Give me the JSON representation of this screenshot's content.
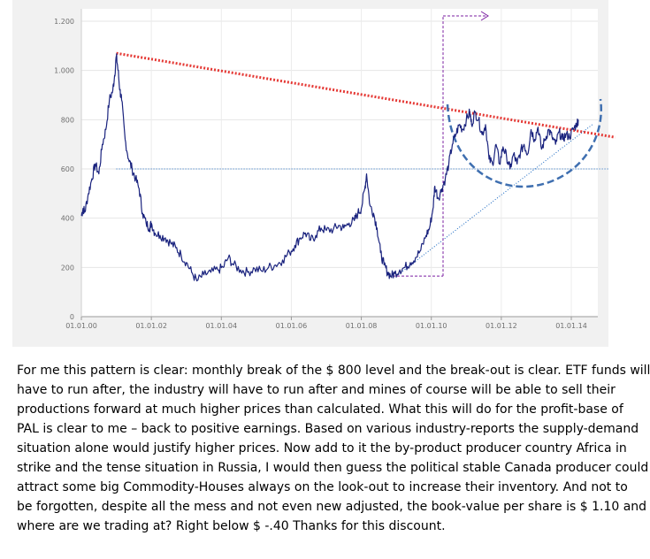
{
  "chart_data": {
    "type": "line",
    "title": "",
    "xlabel": "",
    "ylabel": "",
    "ylim": [
      0,
      1200
    ],
    "y_ticks": [
      0,
      200,
      400,
      600,
      800,
      1000,
      1200
    ],
    "y_tick_labels": [
      "0",
      "200",
      "400",
      "600",
      "800",
      "1.000",
      "1.200"
    ],
    "x_tick_labels": [
      "01.01.00",
      "01.01.02",
      "01.01.04",
      "01.01.06",
      "01.01.08",
      "01.01.10",
      "01.01.12",
      "01.01.14"
    ],
    "x_tick_years": [
      2000,
      2002,
      2004,
      2006,
      2008,
      2010,
      2012,
      2014
    ],
    "x_range_years": [
      2000.0,
      2014.6
    ],
    "grid": true,
    "series": [
      {
        "color": "#1a237e",
        "points": [
          [
            2000.0,
            410
          ],
          [
            2000.05,
            440
          ],
          [
            2000.1,
            425
          ],
          [
            2000.2,
            500
          ],
          [
            2000.3,
            560
          ],
          [
            2000.4,
            620
          ],
          [
            2000.5,
            580
          ],
          [
            2000.6,
            700
          ],
          [
            2000.7,
            760
          ],
          [
            2000.8,
            880
          ],
          [
            2000.9,
            920
          ],
          [
            2000.95,
            980
          ],
          [
            2001.0,
            1060
          ],
          [
            2001.05,
            1000
          ],
          [
            2001.1,
            920
          ],
          [
            2001.15,
            880
          ],
          [
            2001.25,
            720
          ],
          [
            2001.35,
            640
          ],
          [
            2001.45,
            600
          ],
          [
            2001.55,
            560
          ],
          [
            2001.65,
            520
          ],
          [
            2001.75,
            420
          ],
          [
            2001.85,
            380
          ],
          [
            2001.95,
            360
          ],
          [
            2002.0,
            380
          ],
          [
            2002.1,
            340
          ],
          [
            2002.25,
            330
          ],
          [
            2002.4,
            320
          ],
          [
            2002.55,
            300
          ],
          [
            2002.7,
            280
          ],
          [
            2002.85,
            250
          ],
          [
            2003.0,
            220
          ],
          [
            2003.15,
            180
          ],
          [
            2003.3,
            145
          ],
          [
            2003.5,
            170
          ],
          [
            2003.7,
            180
          ],
          [
            2003.9,
            190
          ],
          [
            2004.05,
            200
          ],
          [
            2004.2,
            240
          ],
          [
            2004.35,
            210
          ],
          [
            2004.55,
            190
          ],
          [
            2004.75,
            180
          ],
          [
            2004.95,
            195
          ],
          [
            2005.15,
            185
          ],
          [
            2005.35,
            200
          ],
          [
            2005.55,
            210
          ],
          [
            2005.75,
            230
          ],
          [
            2005.95,
            260
          ],
          [
            2006.1,
            290
          ],
          [
            2006.25,
            320
          ],
          [
            2006.4,
            340
          ],
          [
            2006.55,
            310
          ],
          [
            2006.7,
            330
          ],
          [
            2006.85,
            360
          ],
          [
            2007.0,
            350
          ],
          [
            2007.2,
            355
          ],
          [
            2007.35,
            370
          ],
          [
            2007.5,
            360
          ],
          [
            2007.65,
            380
          ],
          [
            2007.8,
            390
          ],
          [
            2007.9,
            420
          ],
          [
            2008.0,
            440
          ],
          [
            2008.1,
            520
          ],
          [
            2008.15,
            580
          ],
          [
            2008.25,
            450
          ],
          [
            2008.35,
            420
          ],
          [
            2008.45,
            360
          ],
          [
            2008.55,
            260
          ],
          [
            2008.65,
            210
          ],
          [
            2008.75,
            180
          ],
          [
            2008.85,
            165
          ],
          [
            2008.95,
            175
          ],
          [
            2009.1,
            190
          ],
          [
            2009.25,
            200
          ],
          [
            2009.4,
            220
          ],
          [
            2009.55,
            240
          ],
          [
            2009.7,
            270
          ],
          [
            2009.85,
            330
          ],
          [
            2009.95,
            360
          ],
          [
            2010.05,
            440
          ],
          [
            2010.1,
            530
          ],
          [
            2010.2,
            480
          ],
          [
            2010.3,
            520
          ],
          [
            2010.4,
            560
          ],
          [
            2010.5,
            620
          ],
          [
            2010.6,
            700
          ],
          [
            2010.7,
            740
          ],
          [
            2010.8,
            780
          ],
          [
            2010.9,
            760
          ],
          [
            2011.0,
            800
          ],
          [
            2011.1,
            830
          ],
          [
            2011.15,
            780
          ],
          [
            2011.25,
            830
          ],
          [
            2011.35,
            800
          ],
          [
            2011.45,
            740
          ],
          [
            2011.55,
            780
          ],
          [
            2011.65,
            640
          ],
          [
            2011.75,
            620
          ],
          [
            2011.85,
            700
          ],
          [
            2011.95,
            620
          ],
          [
            2012.05,
            690
          ],
          [
            2012.15,
            650
          ],
          [
            2012.25,
            600
          ],
          [
            2012.35,
            660
          ],
          [
            2012.45,
            620
          ],
          [
            2012.55,
            670
          ],
          [
            2012.65,
            700
          ],
          [
            2012.75,
            660
          ],
          [
            2012.85,
            760
          ],
          [
            2012.95,
            720
          ],
          [
            2013.05,
            770
          ],
          [
            2013.15,
            680
          ],
          [
            2013.25,
            720
          ],
          [
            2013.35,
            760
          ],
          [
            2013.45,
            730
          ],
          [
            2013.55,
            700
          ],
          [
            2013.65,
            750
          ],
          [
            2013.75,
            720
          ],
          [
            2013.85,
            740
          ],
          [
            2013.95,
            730
          ],
          [
            2014.05,
            760
          ],
          [
            2014.15,
            780
          ],
          [
            2014.2,
            800
          ]
        ]
      }
    ],
    "annotations": [
      {
        "kind": "resistance-trendline",
        "color": "#e53935",
        "style": "dotted",
        "from": [
          2001.0,
          1070
        ],
        "to": [
          2014.7,
          750
        ]
      },
      {
        "kind": "horizontal-level",
        "color": "#1565c0",
        "style": "dotted",
        "y": 600,
        "from_x": 2001.0,
        "to_x": 2014.6
      },
      {
        "kind": "support-trendline",
        "color": "#1565c0",
        "style": "dotted",
        "from": [
          2009.0,
          165
        ],
        "to": [
          2014.6,
          780
        ]
      },
      {
        "kind": "cup-arc",
        "color": "#3f6fb0",
        "style": "dashed"
      },
      {
        "kind": "breakout-arrow",
        "color": "#7b1fa2",
        "style": "dashed"
      }
    ]
  },
  "text": {
    "lines": [
      "For me this pattern is clear: monthly break of the $ 800 level and the break-out is clear. ETF funds will",
      "have to run after, the industry will have to run after and mines of course will be able to sell their",
      "productions forward at much higher prices than calculated. What this will do for the profit-base of",
      "PAL is clear to me – back to positive earnings.  Based on various industry-reports the supply-demand",
      "situation alone would justify higher prices. Now add to it the by-product producer country Africa in",
      "strike and the tense situation in Russia, I would then guess the political stable Canada producer could",
      "attract some big Commodity-Houses  always on the look-out to increase their inventory.  And not to",
      "be forgotten, despite all the mess and not even new adjusted, the book-value per share is $ 1.10 and",
      "where are we trading at? Right below $ -.40  Thanks for this discount."
    ]
  }
}
